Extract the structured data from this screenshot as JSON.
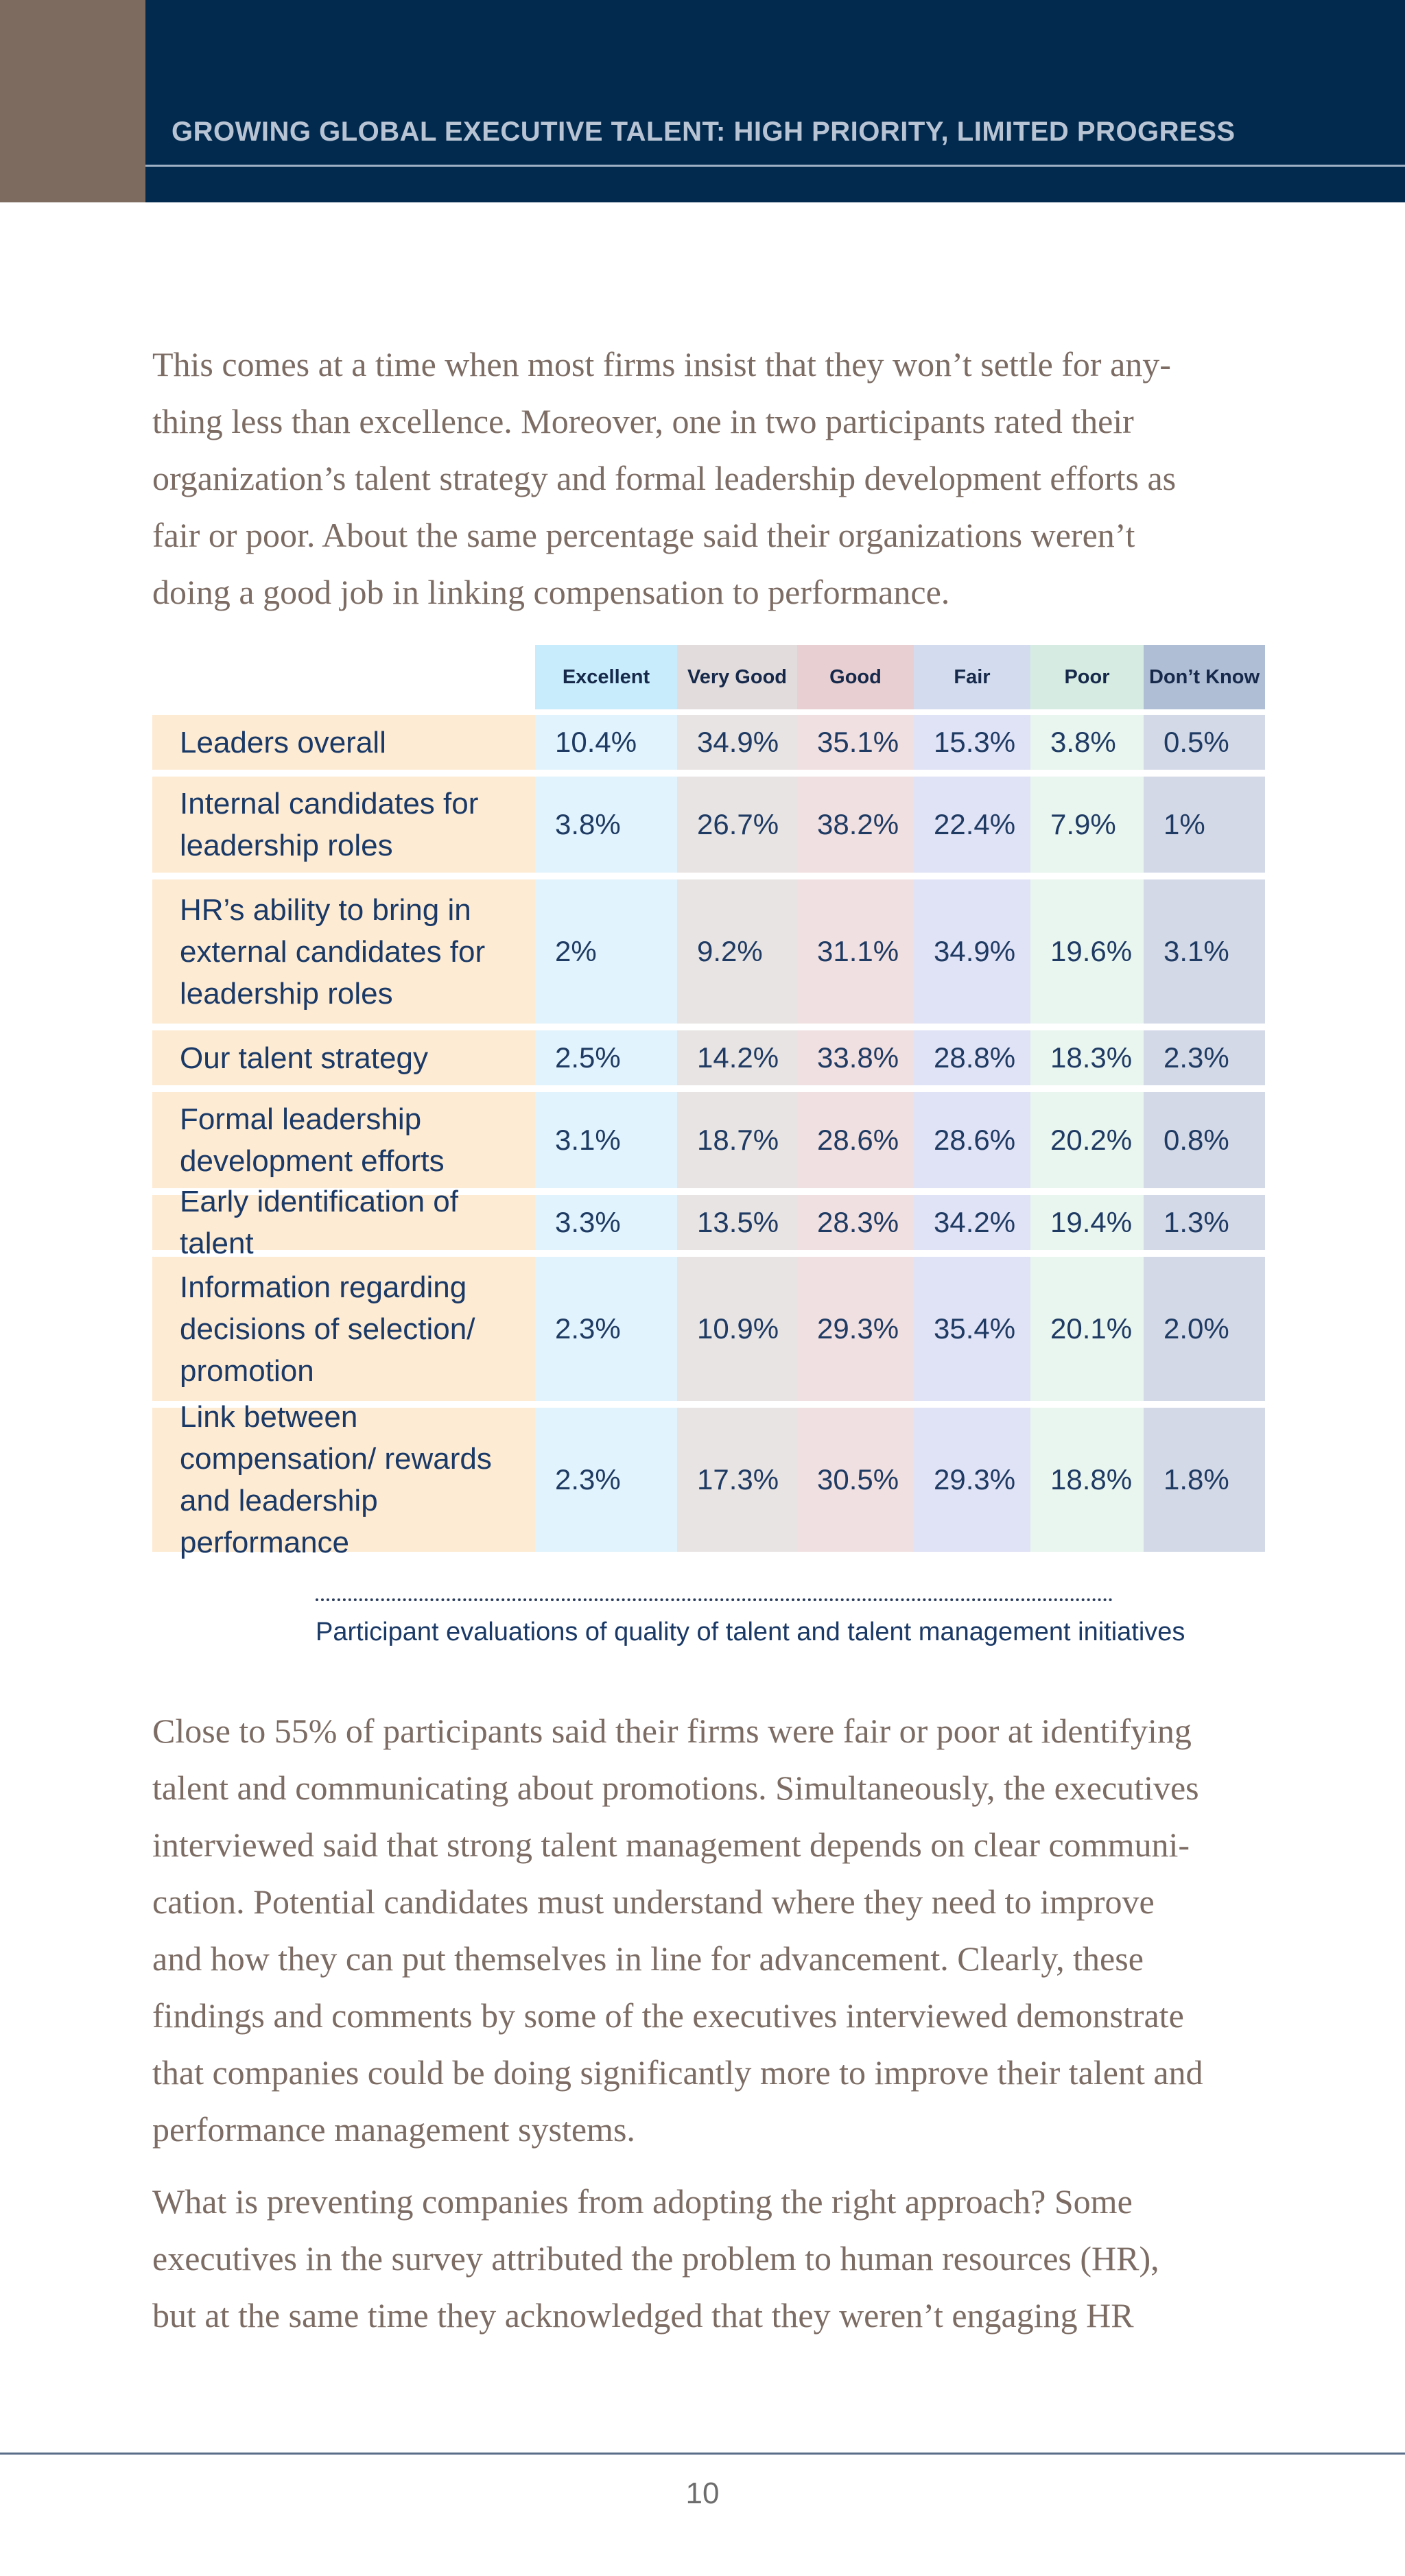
{
  "header": {
    "title": "GROWING GLOBAL EXECUTIVE TALENT: HIGH PRIORITY, LIMITED PROGRESS"
  },
  "paragraphs": {
    "intro": [
      "This comes at a time when most firms insist that they won’t settle for any-",
      "thing less than excellence. Moreover, one in two participants rated their",
      "organization’s talent strategy and formal leadership development efforts as",
      "fair or poor. About the same percentage said their organizations weren’t",
      "doing a good job in linking compensation to performance."
    ],
    "body1": [
      "Close to 55% of participants said their firms were fair or poor at identifying",
      "talent and communicating about promotions. Simultaneously, the executives",
      "interviewed said that strong talent management depends on clear communi-",
      "cation. Potential candidates must understand where they need to improve",
      "and how they can put themselves in line for advancement. Clearly, these",
      "findings and comments by some of the executives interviewed demonstrate",
      "that companies could be doing significantly more to improve their talent and",
      "performance management systems."
    ],
    "body2": [
      "What is preventing companies from adopting the right approach? Some",
      "executives in the survey attributed the problem to human resources (HR),",
      "but at the same time they acknowledged that they weren’t engaging HR"
    ]
  },
  "table": {
    "columns": [
      {
        "label": "Excellent",
        "header_color": "#c8ecfc",
        "cell_color": "#e1f3fc"
      },
      {
        "label": "Very Good",
        "header_color": "#e2dcdc",
        "cell_color": "#e8e4e3"
      },
      {
        "label": "Good",
        "header_color": "#e8cfd1",
        "cell_color": "#f1e0e1"
      },
      {
        "label": "Fair",
        "header_color": "#d3dcee",
        "cell_color": "#e0e2f5"
      },
      {
        "label": "Poor",
        "header_color": "#d6ece2",
        "cell_color": "#e9f5ef"
      },
      {
        "label": "Don’t  Know",
        "header_color": "#afbdd5",
        "cell_color": "#d4d9e8"
      }
    ],
    "rows": [
      {
        "label": "Leaders overall",
        "values": [
          "10.4%",
          "34.9%",
          "35.1%",
          "15.3%",
          "3.8%",
          "0.5%"
        ]
      },
      {
        "label": "Internal candidates for leadership roles",
        "values": [
          "3.8%",
          "26.7%",
          "38.2%",
          "22.4%",
          "7.9%",
          "1%"
        ]
      },
      {
        "label": "HR’s ability to bring in external candidates for leadership roles",
        "values": [
          "2%",
          "9.2%",
          "31.1%",
          "34.9%",
          "19.6%",
          "3.1%"
        ]
      },
      {
        "label": "Our talent strategy",
        "values": [
          "2.5%",
          "14.2%",
          "33.8%",
          "28.8%",
          "18.3%",
          "2.3%"
        ]
      },
      {
        "label": "Formal leadership development efforts",
        "values": [
          "3.1%",
          "18.7%",
          "28.6%",
          "28.6%",
          "20.2%",
          "0.8%"
        ]
      },
      {
        "label": "Early identification of talent",
        "values": [
          "3.3%",
          "13.5%",
          "28.3%",
          "34.2%",
          "19.4%",
          "1.3%"
        ]
      },
      {
        "label": "Information regarding decisions of selection/ promotion",
        "values": [
          "2.3%",
          "10.9%",
          "29.3%",
          "35.4%",
          "20.1%",
          "2.0%"
        ]
      },
      {
        "label": "Link between compensation/ rewards and leadership performance",
        "values": [
          "2.3%",
          "17.3%",
          "30.5%",
          "29.3%",
          "18.8%",
          "1.8%"
        ]
      }
    ],
    "caption": "Participant evaluations of quality of talent and talent management initiatives"
  },
  "footer": {
    "page_number": "10"
  }
}
